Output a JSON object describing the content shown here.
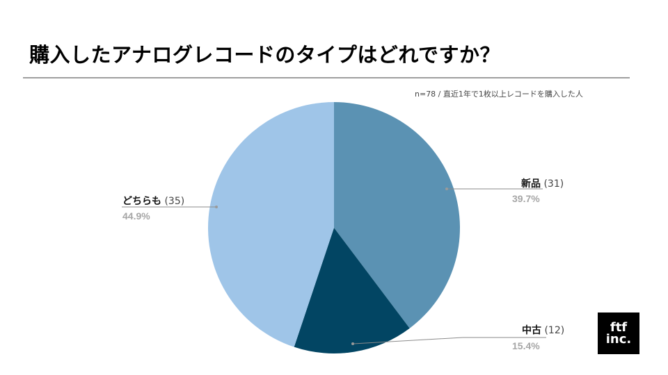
{
  "title": "購入したアナログレコードのタイプはどれですか？",
  "note": "n=78 / 直近1年で1枚以上レコードを購入した人",
  "logo": {
    "line1": "ftf",
    "line2": "inc."
  },
  "labels": {
    "new": {
      "name": "新品",
      "count": "(31)",
      "pct": "39.7%"
    },
    "used": {
      "name": "中古",
      "count": "(12)",
      "pct": "15.4%"
    },
    "both": {
      "name": "どちらも",
      "count": "(35)",
      "pct": "44.9%"
    }
  },
  "chart_data": {
    "type": "pie",
    "title": "購入したアナログレコードのタイプはどれですか？",
    "subtitle": "n=78 / 直近1年で1枚以上レコードを購入した人",
    "categories": [
      "新品",
      "中古",
      "どちらも"
    ],
    "values": [
      31,
      12,
      35
    ],
    "percentages": [
      39.7,
      15.4,
      44.9
    ],
    "colors": [
      "#5b92b3",
      "#024563",
      "#9fc5e8"
    ],
    "start_angle": "12 o'clock, clockwise",
    "legend": "none (callout labels)"
  }
}
